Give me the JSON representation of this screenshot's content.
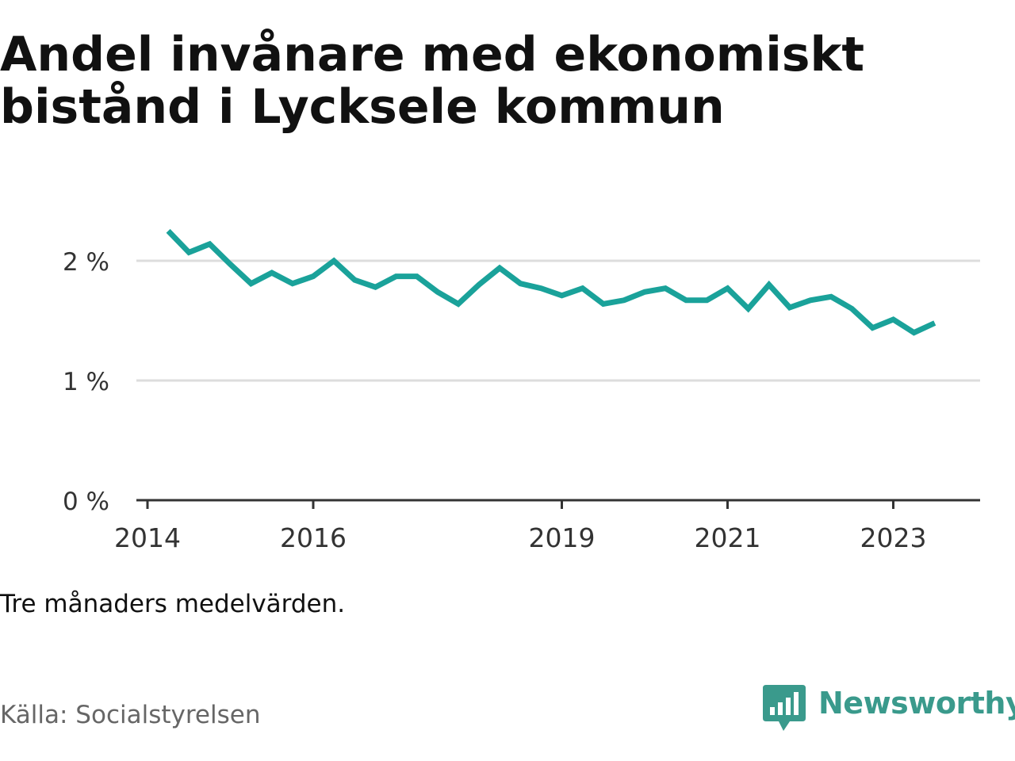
{
  "title": "Andel invånare med ekonomiskt bistånd i Lycksele kommun",
  "note": "Tre månaders medelvärden.",
  "source": "Källa: Socialstyrelsen",
  "brand": {
    "name": "Newsworthy",
    "icon": "newsworthy-logo-icon",
    "color": "#3a9a8c"
  },
  "colors": {
    "line": "#1aa29a",
    "grid": "#dddddd",
    "axis": "#333333",
    "text": "#111111",
    "source": "#666666"
  },
  "chart_data": {
    "type": "line",
    "title": "Andel invånare med ekonomiskt bistånd i Lycksele kommun",
    "xlabel": "",
    "ylabel": "",
    "x_ticks": [
      "2014",
      "2016",
      "2019",
      "2021",
      "2023"
    ],
    "y_ticks": [
      "0 %",
      "1 %",
      "2 %"
    ],
    "ylim": [
      0,
      2.4
    ],
    "grid": true,
    "series": [
      {
        "color": "#1aa29a",
        "points": [
          {
            "x": "2014-04",
            "y": 2.25
          },
          {
            "x": "2014-07",
            "y": 2.07
          },
          {
            "x": "2014-10",
            "y": 2.14
          },
          {
            "x": "2015-01",
            "y": 1.97
          },
          {
            "x": "2015-04",
            "y": 1.81
          },
          {
            "x": "2015-07",
            "y": 1.9
          },
          {
            "x": "2015-10",
            "y": 1.81
          },
          {
            "x": "2016-01",
            "y": 1.87
          },
          {
            "x": "2016-04",
            "y": 2.0
          },
          {
            "x": "2016-07",
            "y": 1.84
          },
          {
            "x": "2016-10",
            "y": 1.78
          },
          {
            "x": "2017-01",
            "y": 1.87
          },
          {
            "x": "2017-04",
            "y": 1.87
          },
          {
            "x": "2017-07",
            "y": 1.74
          },
          {
            "x": "2017-10",
            "y": 1.64
          },
          {
            "x": "2018-01",
            "y": 1.8
          },
          {
            "x": "2018-04",
            "y": 1.94
          },
          {
            "x": "2018-07",
            "y": 1.81
          },
          {
            "x": "2018-10",
            "y": 1.77
          },
          {
            "x": "2019-01",
            "y": 1.71
          },
          {
            "x": "2019-04",
            "y": 1.77
          },
          {
            "x": "2019-07",
            "y": 1.64
          },
          {
            "x": "2019-10",
            "y": 1.67
          },
          {
            "x": "2020-01",
            "y": 1.74
          },
          {
            "x": "2020-04",
            "y": 1.77
          },
          {
            "x": "2020-07",
            "y": 1.67
          },
          {
            "x": "2020-10",
            "y": 1.67
          },
          {
            "x": "2021-01",
            "y": 1.77
          },
          {
            "x": "2021-04",
            "y": 1.6
          },
          {
            "x": "2021-07",
            "y": 1.8
          },
          {
            "x": "2021-10",
            "y": 1.61
          },
          {
            "x": "2022-01",
            "y": 1.67
          },
          {
            "x": "2022-04",
            "y": 1.7
          },
          {
            "x": "2022-07",
            "y": 1.6
          },
          {
            "x": "2022-10",
            "y": 1.44
          },
          {
            "x": "2023-01",
            "y": 1.51
          },
          {
            "x": "2023-04",
            "y": 1.4
          },
          {
            "x": "2023-07",
            "y": 1.48
          }
        ]
      }
    ]
  }
}
